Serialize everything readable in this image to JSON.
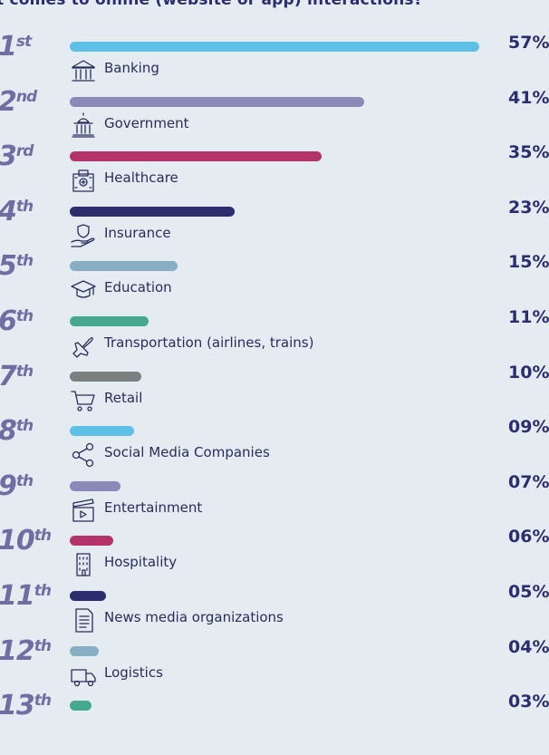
{
  "title": "t comes to online (website or app) interactions?",
  "colors": {
    "bar_colors": [
      "#5ec0e6",
      "#8a89b8",
      "#b3336a",
      "#2c2d6e",
      "#88aec4",
      "#45a98f",
      "#7c7f80",
      "#5ec0e6",
      "#8a89b8",
      "#b3336a",
      "#2c2d6e",
      "#88aec4",
      "#45a98f"
    ],
    "rank_color": "#6f6ea3",
    "text_color": "#2c2d6e",
    "background": "#e4ecf2"
  },
  "chart_data": {
    "type": "bar",
    "orientation": "horizontal",
    "title": "t comes to online (website or app) interactions?",
    "categories": [
      "Banking",
      "Government",
      "Healthcare",
      "Insurance",
      "Education",
      "Transportation (airlines, trains)",
      "Retail",
      "Social Media Companies",
      "Entertainment",
      "Hospitality",
      "News media organizations",
      "Logistics",
      ""
    ],
    "ranks": [
      {
        "num": "1",
        "suffix": "st"
      },
      {
        "num": "2",
        "suffix": "nd"
      },
      {
        "num": "3",
        "suffix": "rd"
      },
      {
        "num": "4",
        "suffix": "th"
      },
      {
        "num": "5",
        "suffix": "th"
      },
      {
        "num": "6",
        "suffix": "th"
      },
      {
        "num": "7",
        "suffix": "th"
      },
      {
        "num": "8",
        "suffix": "th"
      },
      {
        "num": "9",
        "suffix": "th"
      },
      {
        "num": "10",
        "suffix": "th"
      },
      {
        "num": "11",
        "suffix": "th"
      },
      {
        "num": "12",
        "suffix": "th"
      },
      {
        "num": "13",
        "suffix": "th"
      }
    ],
    "values": [
      57,
      41,
      35,
      23,
      15,
      11,
      10,
      9,
      7,
      6,
      5,
      4,
      3
    ],
    "value_labels": [
      "57%",
      "41%",
      "35%",
      "23%",
      "15%",
      "11%",
      "10%",
      "09%",
      "07%",
      "06%",
      "05%",
      "04%",
      "03%"
    ],
    "icons": [
      "bank-icon",
      "government-building-icon",
      "hospital-icon",
      "insurance-hand-icon",
      "graduation-cap-icon",
      "airplane-icon",
      "shopping-cart-icon",
      "share-network-icon",
      "clapperboard-icon",
      "hotel-building-icon",
      "newspaper-document-icon",
      "delivery-truck-icon",
      ""
    ],
    "xlim": [
      0,
      57
    ],
    "legend": "none",
    "grid": false
  }
}
